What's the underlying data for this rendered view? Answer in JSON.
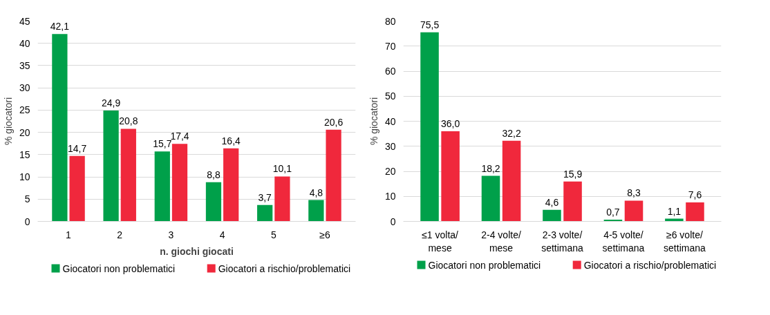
{
  "chart_data": [
    {
      "type": "bar",
      "xlabel": "n. giochi giocati",
      "ylabel": "% giocatori",
      "categories": [
        "1",
        "2",
        "3",
        "4",
        "5",
        "≥6"
      ],
      "ylim": [
        0,
        45
      ],
      "yticks": [
        0,
        5,
        10,
        15,
        20,
        25,
        30,
        35,
        40,
        45
      ],
      "grid": "y",
      "legend": "bottom",
      "series": [
        {
          "name": "Giocatori non problematici",
          "color": "#00a04a",
          "values": [
            42.1,
            24.9,
            15.7,
            8.8,
            3.7,
            4.8
          ],
          "value_labels": [
            "42,1",
            "24,9",
            "15,7",
            "8,8",
            "3,7",
            "4,8"
          ]
        },
        {
          "name": "Giocatori a rischio/problematici",
          "color": "#f0283c",
          "values": [
            14.7,
            20.8,
            17.4,
            16.4,
            10.1,
            20.6
          ],
          "value_labels": [
            "14,7",
            "20,8",
            "17,4",
            "16,4",
            "10,1",
            "20,6"
          ]
        }
      ]
    },
    {
      "type": "bar",
      "ylabel": "% giocatori",
      "categories": [
        "≤1 volta/\nmese",
        "2-4 volte/\nmese",
        "2-3 volte/\nsettimana",
        "4-5 volte/\nsettimana",
        "≥6 volte/\nsettimana"
      ],
      "ylim": [
        0,
        80
      ],
      "yticks": [
        0,
        10,
        20,
        30,
        40,
        50,
        60,
        70,
        80
      ],
      "grid": "y",
      "legend": "bottom",
      "series": [
        {
          "name": "Giocatori non problematici",
          "color": "#00a04a",
          "values": [
            75.5,
            18.2,
            4.6,
            0.7,
            1.1
          ],
          "value_labels": [
            "75,5",
            "18,2",
            "4,6",
            "0,7",
            "1,1"
          ]
        },
        {
          "name": "Giocatori a rischio/problematici",
          "color": "#f0283c",
          "values": [
            36.0,
            32.2,
            15.9,
            8.3,
            7.6
          ],
          "value_labels": [
            "36,0",
            "32,2",
            "15,9",
            "8,3",
            "7,6"
          ]
        }
      ]
    }
  ]
}
